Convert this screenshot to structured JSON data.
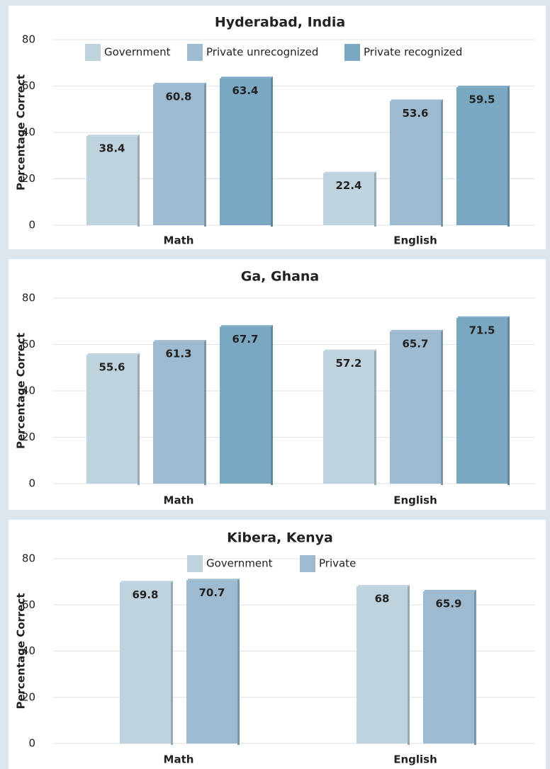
{
  "charts": [
    {
      "type": "bar",
      "title": "Hyderabad, India",
      "y_label": "Percentage Correct",
      "categories": [
        "Math",
        "English"
      ],
      "series": [
        {
          "name": "Government",
          "color": "#bfd3df",
          "values": [
            38.4,
            22.4
          ]
        },
        {
          "name": "Private unrecognized",
          "color": "#9dbad0",
          "values": [
            60.8,
            53.6
          ]
        },
        {
          "name": "Private recognized",
          "color": "#7aa8c2",
          "values": [
            63.4,
            59.5
          ]
        }
      ],
      "ylim": [
        0,
        80
      ],
      "yticks": [
        0,
        20,
        40,
        60,
        80
      ],
      "grid": true
    },
    {
      "type": "bar",
      "title": "Ga, Ghana",
      "y_label": "Percentage Correct",
      "categories": [
        "Math",
        "English"
      ],
      "series": [
        {
          "color": "#bfd3df",
          "values": [
            55.6,
            57.2
          ]
        },
        {
          "color": "#9dbad0",
          "values": [
            61.3,
            65.7
          ]
        },
        {
          "color": "#7aa8c2",
          "values": [
            67.7,
            71.5
          ]
        }
      ],
      "ylim": [
        0,
        80
      ],
      "yticks": [
        0,
        20,
        40,
        60,
        80
      ],
      "grid": true
    },
    {
      "type": "bar",
      "title": "Kibera, Kenya",
      "y_label": "Percentage Correct",
      "categories": [
        "Math",
        "English"
      ],
      "series": [
        {
          "name": "Government",
          "color": "#bfd3df",
          "values": [
            69.8,
            68
          ]
        },
        {
          "name": "Private",
          "color": "#9dbad0",
          "values": [
            70.7,
            65.9
          ]
        }
      ],
      "ylim": [
        0,
        80
      ],
      "yticks": [
        0,
        20,
        40,
        60,
        80
      ],
      "grid": true
    }
  ]
}
